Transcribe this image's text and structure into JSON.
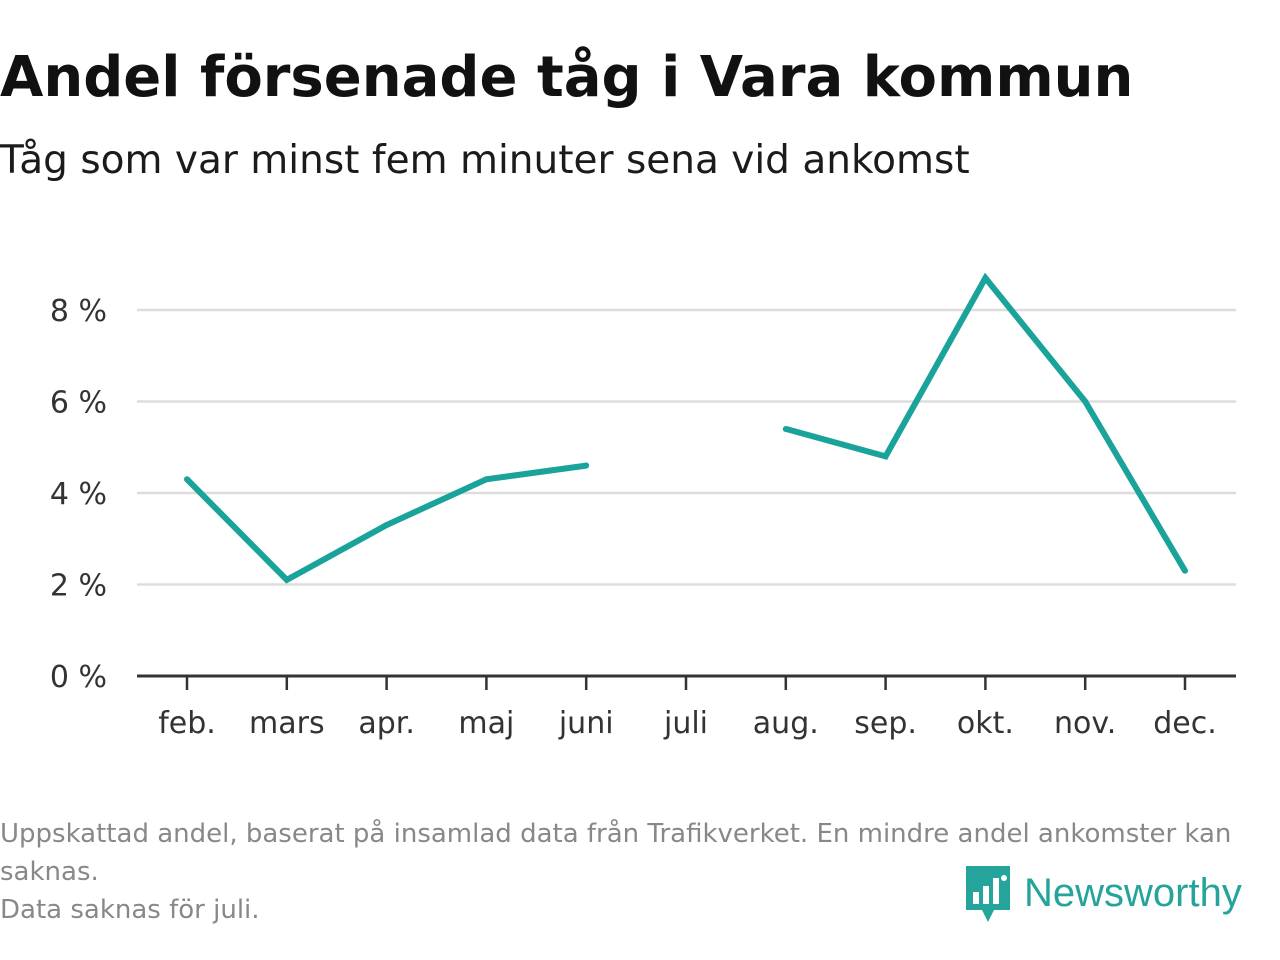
{
  "header": {
    "title": "Andel försenade tåg i Vara kommun",
    "subtitle": "Tåg som var minst fem minuter sena vid ankomst"
  },
  "footnote": {
    "line1": "Uppskattad andel, baserat på insamlad data från Trafikverket. En mindre andel ankomster kan saknas.",
    "line2": "Data saknas för juli."
  },
  "brand": {
    "name": "Newsworthy",
    "color": "#24a49a"
  },
  "chart_data": {
    "type": "line",
    "title": "Andel försenade tåg i Vara kommun",
    "subtitle": "Tåg som var minst fem minuter sena vid ankomst",
    "xlabel": "",
    "ylabel": "",
    "categories": [
      "feb.",
      "mars",
      "apr.",
      "maj",
      "juni",
      "juli",
      "aug.",
      "sep.",
      "okt.",
      "nov.",
      "dec."
    ],
    "series": [
      {
        "values": [
          4.3,
          2.1,
          3.3,
          4.3,
          4.6,
          null,
          5.4,
          4.8,
          8.7,
          6.0,
          2.3
        ],
        "color": "#1aa39a"
      }
    ],
    "y_ticks": [
      0,
      2,
      4,
      6,
      8
    ],
    "y_tick_labels": [
      "0 %",
      "2 %",
      "4 %",
      "6 %",
      "8 %"
    ],
    "ylim": [
      0,
      9
    ],
    "grid": true,
    "legend": "none",
    "missing": [
      "juli"
    ]
  }
}
